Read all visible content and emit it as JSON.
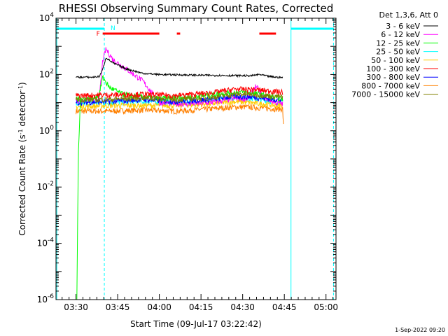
{
  "chart_data": {
    "type": "line",
    "title": "RHESSI Observing Summary Count Rates, Corrected",
    "xlabel": "Start Time (09-Jul-17 03:22:42)",
    "ylabel_parts": [
      "Corrected Count Rate (s",
      "-1",
      " detector",
      "-1",
      ")"
    ],
    "y_scale": "log",
    "ylim_exp": [
      -6,
      4
    ],
    "y_tick_labels": [
      {
        "base": "10",
        "exp": "-6",
        "e": -6
      },
      {
        "base": "10",
        "exp": "-4",
        "e": -4
      },
      {
        "base": "10",
        "exp": "-2",
        "e": -2
      },
      {
        "base": "10",
        "exp": "0",
        "e": 0
      },
      {
        "base": "10",
        "exp": "2",
        "e": 2
      },
      {
        "base": "10",
        "exp": "4",
        "e": 4
      }
    ],
    "xlim_min": [
      3.38,
      5.06
    ],
    "x_tick_labels": [
      {
        "label": "03:30",
        "t": 3.5
      },
      {
        "label": "03:45",
        "t": 3.75
      },
      {
        "label": "04:00",
        "t": 4.0
      },
      {
        "label": "04:15",
        "t": 4.25
      },
      {
        "label": "04:30",
        "t": 4.5
      },
      {
        "label": "04:45",
        "t": 4.75
      },
      {
        "label": "05:00",
        "t": 5.0
      }
    ],
    "legend_header": "Det 1,3,6, Att 0",
    "legend_position": "right, outside plot",
    "series": [
      {
        "name": "3 - 6 keV",
        "color": "#000000",
        "points": [
          [
            3.5,
            80
          ],
          [
            3.6,
            80
          ],
          [
            3.64,
            85
          ],
          [
            3.66,
            150
          ],
          [
            3.68,
            400
          ],
          [
            3.72,
            260
          ],
          [
            3.8,
            160
          ],
          [
            3.9,
            110
          ],
          [
            4.0,
            100
          ],
          [
            4.2,
            95
          ],
          [
            4.4,
            92
          ],
          [
            4.55,
            90
          ],
          [
            4.6,
            100
          ],
          [
            4.66,
            85
          ],
          [
            4.7,
            80
          ],
          [
            4.74,
            78
          ]
        ]
      },
      {
        "name": "6 - 12 keV",
        "color": "#ff00ff",
        "points": [
          [
            3.5,
            12
          ],
          [
            3.6,
            12
          ],
          [
            3.64,
            14
          ],
          [
            3.66,
            300
          ],
          [
            3.68,
            800
          ],
          [
            3.72,
            350
          ],
          [
            3.8,
            160
          ],
          [
            3.9,
            60
          ],
          [
            3.95,
            25
          ],
          [
            4.0,
            10
          ],
          [
            4.15,
            9
          ],
          [
            4.3,
            10
          ],
          [
            4.45,
            14
          ],
          [
            4.53,
            14
          ],
          [
            4.58,
            40
          ],
          [
            4.62,
            16
          ],
          [
            4.7,
            10
          ],
          [
            4.74,
            9
          ]
        ]
      },
      {
        "name": "12 - 25 keV",
        "color": "#00ff00",
        "points": [
          [
            3.5,
            14
          ],
          [
            3.6,
            14
          ],
          [
            3.64,
            20
          ],
          [
            3.66,
            80
          ],
          [
            3.7,
            35
          ],
          [
            3.78,
            20
          ],
          [
            3.9,
            16
          ],
          [
            4.0,
            14
          ],
          [
            4.2,
            16
          ],
          [
            4.4,
            22
          ],
          [
            4.5,
            24
          ],
          [
            4.6,
            20
          ],
          [
            4.7,
            15
          ],
          [
            4.74,
            14
          ]
        ]
      },
      {
        "name": "25 - 50 keV",
        "color": "#00ffff",
        "points": [
          [
            3.5,
            9
          ],
          [
            3.7,
            10
          ],
          [
            3.9,
            11
          ],
          [
            4.1,
            10
          ],
          [
            4.3,
            12
          ],
          [
            4.45,
            15
          ],
          [
            4.55,
            14
          ],
          [
            4.7,
            11
          ],
          [
            4.74,
            10
          ]
        ]
      },
      {
        "name": "50 - 100 keV",
        "color": "#ffcc00",
        "points": [
          [
            3.5,
            7
          ],
          [
            3.7,
            8
          ],
          [
            3.9,
            8
          ],
          [
            4.1,
            8
          ],
          [
            4.3,
            9
          ],
          [
            4.45,
            11
          ],
          [
            4.55,
            10
          ],
          [
            4.7,
            8
          ],
          [
            4.74,
            8
          ]
        ]
      },
      {
        "name": "100 - 300 keV",
        "color": "#ff0000",
        "points": [
          [
            3.5,
            18
          ],
          [
            3.7,
            19
          ],
          [
            3.9,
            20
          ],
          [
            4.1,
            18
          ],
          [
            4.3,
            22
          ],
          [
            4.45,
            30
          ],
          [
            4.55,
            30
          ],
          [
            4.7,
            25
          ],
          [
            4.74,
            24
          ]
        ]
      },
      {
        "name": "300 - 800 keV",
        "color": "#0000ff",
        "points": [
          [
            3.5,
            10
          ],
          [
            3.7,
            11
          ],
          [
            3.9,
            13
          ],
          [
            4.1,
            11
          ],
          [
            4.3,
            13
          ],
          [
            4.45,
            17
          ],
          [
            4.55,
            16
          ],
          [
            4.7,
            13
          ],
          [
            4.74,
            12
          ]
        ]
      },
      {
        "name": "800 - 7000 keV",
        "color": "#ff8000",
        "points": [
          [
            3.5,
            5
          ],
          [
            3.7,
            5
          ],
          [
            3.9,
            5.5
          ],
          [
            4.1,
            5
          ],
          [
            4.3,
            6
          ],
          [
            4.45,
            7
          ],
          [
            4.55,
            7
          ],
          [
            4.7,
            6
          ],
          [
            4.74,
            6
          ],
          [
            4.745,
            1.5
          ]
        ]
      },
      {
        "name": "7000 - 15000 keV",
        "color": "#808000",
        "points": [
          [
            3.5,
            13
          ],
          [
            3.7,
            13
          ],
          [
            3.9,
            15
          ],
          [
            4.1,
            13
          ],
          [
            4.3,
            15
          ],
          [
            4.45,
            20
          ],
          [
            4.55,
            20
          ],
          [
            4.7,
            17
          ],
          [
            4.74,
            16
          ]
        ]
      }
    ],
    "dropout_trace": {
      "color": "#00ff00",
      "points": [
        [
          3.5,
          1e-06
        ],
        [
          3.505,
          1e-06
        ],
        [
          3.51,
          0.001
        ],
        [
          3.515,
          0.2
        ],
        [
          3.52,
          1
        ],
        [
          3.525,
          8
        ],
        [
          3.53,
          14
        ]
      ]
    },
    "night_bars": [
      {
        "label": "N",
        "color": "#00ffff",
        "x0": 3.385,
        "x1": 3.67
      },
      {
        "label": "",
        "color": "#00ffff",
        "x0": 4.79,
        "x1": 5.045
      }
    ],
    "flare_bars": [
      {
        "label": "F",
        "color": "#ff0000",
        "x0": 3.66,
        "x1": 4.0
      },
      {
        "label": "",
        "color": "#ff0000",
        "x0": 4.105,
        "x1": 4.125
      },
      {
        "label": "",
        "color": "#ff0000",
        "x0": 4.6,
        "x1": 4.7
      }
    ],
    "vertical_lines": [
      {
        "t": 3.385,
        "color": "#00ffff",
        "style": "solid"
      },
      {
        "t": 3.67,
        "color": "#00ffff",
        "style": "dashed"
      },
      {
        "t": 4.79,
        "color": "#00ffff",
        "style": "solid"
      },
      {
        "t": 5.045,
        "color": "#00ffff",
        "style": "dashed"
      }
    ]
  },
  "footer": {
    "timestamp": "1-Sep-2022 09:20"
  }
}
